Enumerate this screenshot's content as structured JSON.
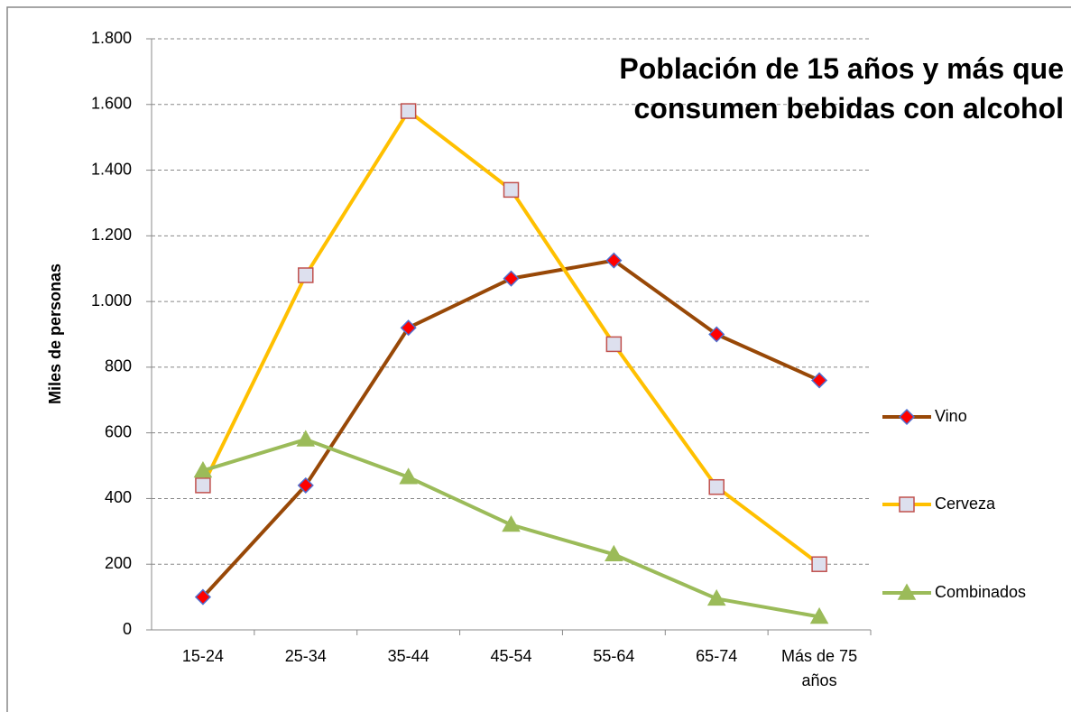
{
  "chart_data": {
    "type": "line",
    "title": "Población de 15 años y más que consumen bebidas con alcohol",
    "y_label": "Miles de personas",
    "categories": [
      "15-24",
      "25-34",
      "35-44",
      "45-54",
      "55-64",
      "65-74",
      "Más de 75 años"
    ],
    "series": [
      {
        "name": "Vino",
        "color": "#984807",
        "marker": "diamond",
        "marker_fill": "#ff0000",
        "marker_stroke": "#4f6fd0",
        "values": [
          100,
          440,
          920,
          1070,
          1125,
          900,
          760
        ]
      },
      {
        "name": "Cerveza",
        "color": "#ffc000",
        "marker": "square",
        "marker_fill": "#dde0ee",
        "marker_stroke": "#c0504d",
        "values": [
          440,
          1080,
          1580,
          1340,
          870,
          435,
          200
        ]
      },
      {
        "name": "Combinados",
        "color": "#9bbb59",
        "marker": "triangle",
        "marker_fill": "#9bbb59",
        "marker_stroke": "#9bbb59",
        "values": [
          485,
          580,
          465,
          320,
          230,
          95,
          40
        ]
      }
    ],
    "ylim": [
      0,
      1800
    ],
    "yticks": [
      0,
      200,
      400,
      600,
      800,
      {
        "value": 1000,
        "label": "1.000"
      },
      {
        "value": 1200,
        "label": "1.200"
      },
      {
        "value": 1400,
        "label": "1.400"
      },
      {
        "value": 1600,
        "label": "1.600"
      },
      {
        "value": 1800,
        "label": "1.800"
      }
    ],
    "grid": true,
    "legend_position": "right"
  }
}
